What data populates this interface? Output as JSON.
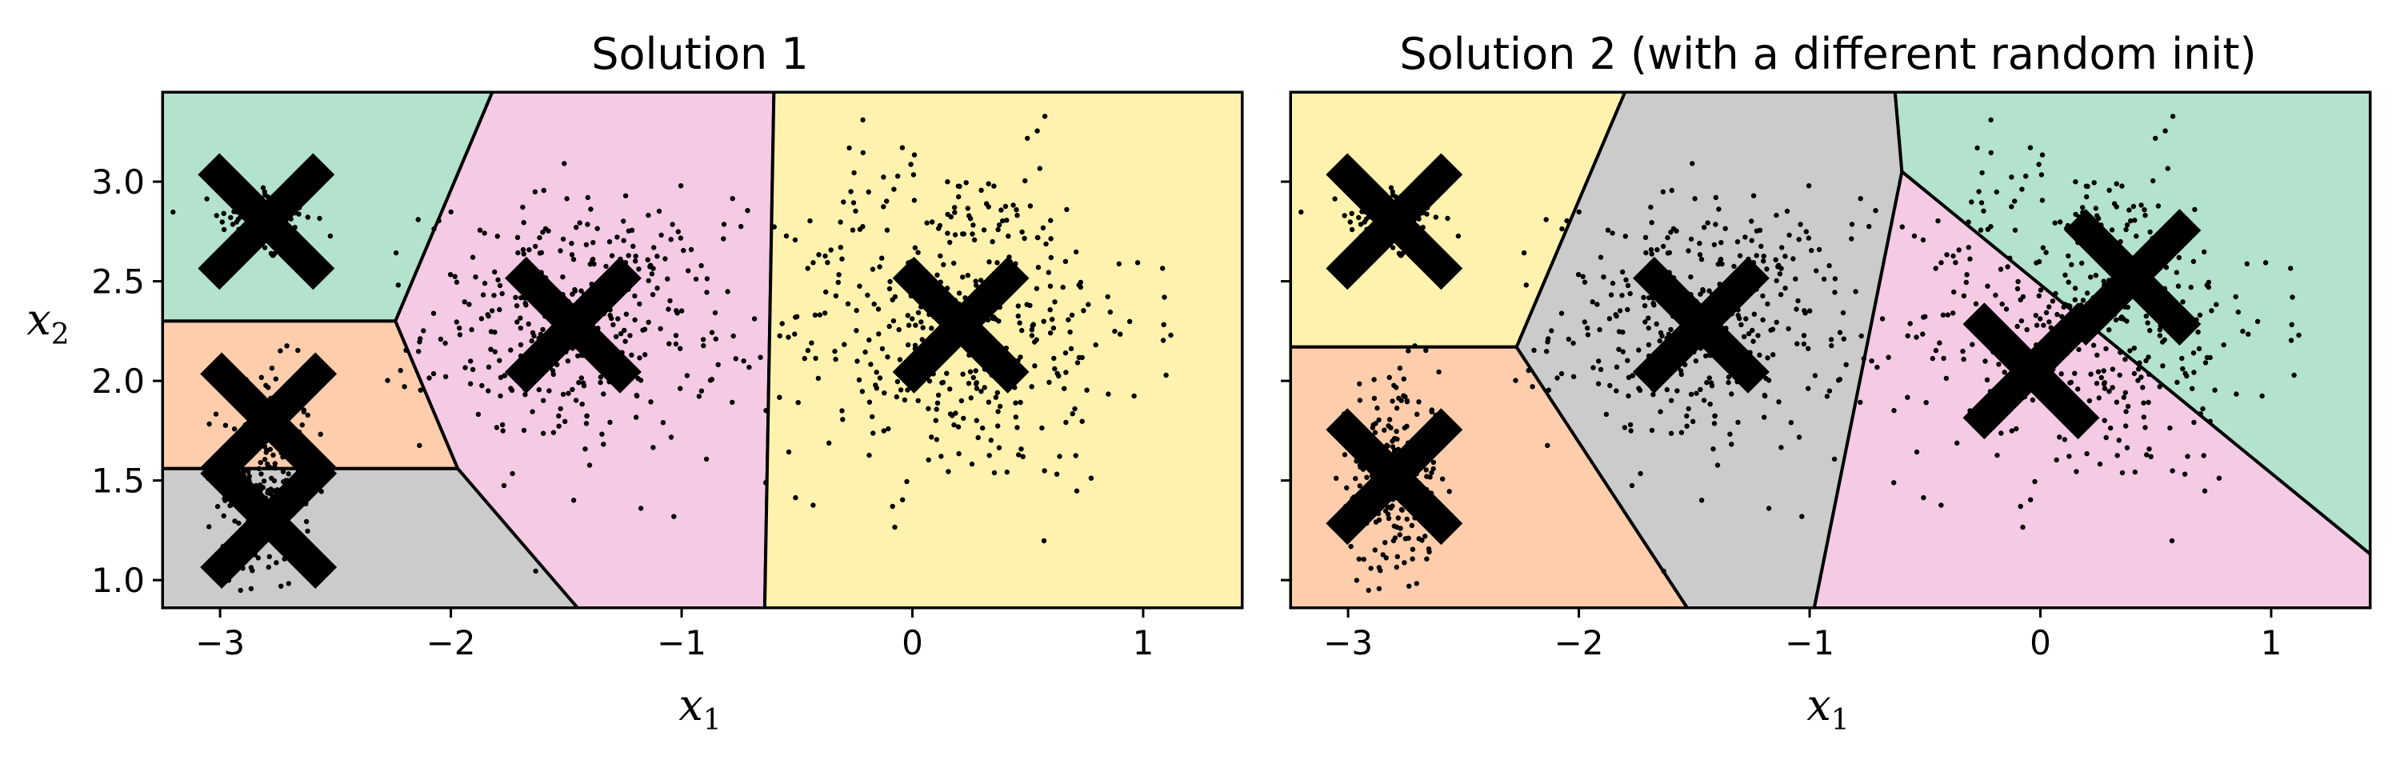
{
  "chart_data": [
    {
      "type": "scatter",
      "title": "Solution 1",
      "xlabel_base": "x",
      "xlabel_sub": "1",
      "ylabel_base": "x",
      "ylabel_sub": "2",
      "xlim": [
        -3.25,
        1.43
      ],
      "ylim": [
        0.86,
        3.45
      ],
      "xticks": [
        -3,
        -2,
        -1,
        0,
        1
      ],
      "yticks": [
        1.0,
        1.5,
        2.0,
        2.5,
        3.0
      ],
      "xtick_labels": [
        "−3",
        "−2",
        "−1",
        "0",
        "1"
      ],
      "ytick_labels": [
        "1.0",
        "1.5",
        "2.0",
        "2.5",
        "3.0"
      ],
      "show_ytick_labels": true,
      "regions": [
        {
          "color": "#b3e2cd",
          "polygon": [
            [
              -3.25,
              2.3
            ],
            [
              -2.24,
              2.3
            ],
            [
              -1.82,
              3.45
            ],
            [
              -3.25,
              3.45
            ]
          ]
        },
        {
          "color": "#fdcdac",
          "polygon": [
            [
              -3.25,
              1.56
            ],
            [
              -1.97,
              1.56
            ],
            [
              -2.24,
              2.3
            ],
            [
              -3.25,
              2.3
            ]
          ]
        },
        {
          "color": "#cbcbcb",
          "polygon": [
            [
              -3.25,
              0.86
            ],
            [
              -1.45,
              0.86
            ],
            [
              -1.97,
              1.56
            ],
            [
              -3.25,
              1.56
            ]
          ]
        },
        {
          "color": "#f4cae4",
          "polygon": [
            [
              -1.82,
              3.45
            ],
            [
              -0.6,
              3.45
            ],
            [
              -0.64,
              0.86
            ],
            [
              -1.45,
              0.86
            ],
            [
              -1.97,
              1.56
            ],
            [
              -2.24,
              2.3
            ]
          ]
        },
        {
          "color": "#fff2ae",
          "polygon": [
            [
              -0.6,
              3.45
            ],
            [
              1.43,
              3.45
            ],
            [
              1.43,
              0.86
            ],
            [
              -0.64,
              0.86
            ]
          ]
        }
      ],
      "clusters": [
        {
          "center": [
            -2.8,
            2.8
          ],
          "spread": [
            0.1,
            0.1
          ],
          "count": 150
        },
        {
          "center": [
            -2.8,
            1.5
          ],
          "spread": [
            0.1,
            0.28
          ],
          "count": 220
        },
        {
          "center": [
            -1.47,
            2.28
          ],
          "spread": [
            0.32,
            0.32
          ],
          "count": 350
        },
        {
          "center": [
            0.2,
            2.3
          ],
          "spread": [
            0.4,
            0.42
          ],
          "count": 420
        }
      ],
      "centroids": [
        [
          -2.8,
          2.8
        ],
        [
          -2.79,
          1.8
        ],
        [
          -2.79,
          1.3
        ],
        [
          -1.47,
          2.28
        ],
        [
          0.21,
          2.28
        ]
      ]
    },
    {
      "type": "scatter",
      "title": "Solution 2 (with a different random init)",
      "xlabel_base": "x",
      "xlabel_sub": "1",
      "ylabel_base": "",
      "ylabel_sub": "",
      "xlim": [
        -3.25,
        1.43
      ],
      "ylim": [
        0.86,
        3.45
      ],
      "xticks": [
        -3,
        -2,
        -1,
        0,
        1
      ],
      "yticks": [
        1.0,
        1.5,
        2.0,
        2.5,
        3.0
      ],
      "xtick_labels": [
        "−3",
        "−2",
        "−1",
        "0",
        "1"
      ],
      "ytick_labels": [
        "1.0",
        "1.5",
        "2.0",
        "2.5",
        "3.0"
      ],
      "show_ytick_labels": false,
      "regions": [
        {
          "color": "#fff2ae",
          "polygon": [
            [
              -3.25,
              2.17
            ],
            [
              -2.27,
              2.17
            ],
            [
              -1.8,
              3.45
            ],
            [
              -3.25,
              3.45
            ]
          ]
        },
        {
          "color": "#fdcdac",
          "polygon": [
            [
              -3.25,
              0.86
            ],
            [
              -1.53,
              0.86
            ],
            [
              -2.27,
              2.17
            ],
            [
              -3.25,
              2.17
            ]
          ]
        },
        {
          "color": "#cbcbcb",
          "polygon": [
            [
              -1.8,
              3.45
            ],
            [
              -0.63,
              3.45
            ],
            [
              -0.6,
              3.05
            ],
            [
              -0.98,
              0.86
            ],
            [
              -1.53,
              0.86
            ],
            [
              -2.27,
              2.17
            ]
          ]
        },
        {
          "color": "#b3e2cd",
          "polygon": [
            [
              -0.63,
              3.45
            ],
            [
              1.43,
              3.45
            ],
            [
              1.43,
              1.13
            ],
            [
              -0.6,
              3.05
            ]
          ]
        },
        {
          "color": "#f4cae4",
          "polygon": [
            [
              -0.6,
              3.05
            ],
            [
              1.43,
              1.13
            ],
            [
              1.43,
              0.86
            ],
            [
              -0.98,
              0.86
            ]
          ]
        }
      ],
      "clusters": [
        {
          "center": [
            -2.8,
            2.8
          ],
          "spread": [
            0.1,
            0.1
          ],
          "count": 150
        },
        {
          "center": [
            -2.8,
            1.5
          ],
          "spread": [
            0.1,
            0.28
          ],
          "count": 220
        },
        {
          "center": [
            -1.47,
            2.28
          ],
          "spread": [
            0.32,
            0.32
          ],
          "count": 350
        },
        {
          "center": [
            0.2,
            2.3
          ],
          "spread": [
            0.4,
            0.42
          ],
          "count": 420
        }
      ],
      "centroids": [
        [
          -2.8,
          2.8
        ],
        [
          -2.8,
          1.52
        ],
        [
          -1.47,
          2.28
        ],
        [
          0.4,
          2.52
        ],
        [
          -0.04,
          2.05
        ]
      ]
    }
  ],
  "colors": {
    "points": "#000000",
    "centroid_marker": "#000000",
    "axes": "#000000"
  }
}
